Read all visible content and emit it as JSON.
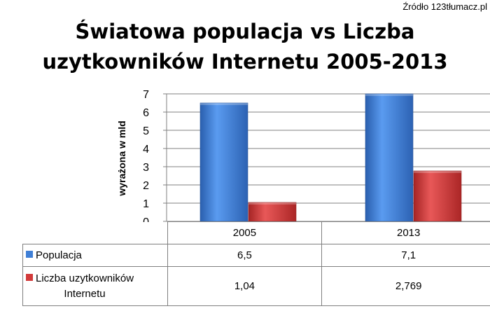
{
  "source": "Źródło 123tłumacz.pl",
  "chart_data": {
    "type": "bar",
    "title_lines": [
      "Światowa populacja vs Liczba",
      "uzytkowników Internetu 2005-2013"
    ],
    "ylabel": "wyrażona w mld",
    "xlabel": "",
    "categories": [
      "2005",
      "2013"
    ],
    "ylim": [
      0,
      7
    ],
    "yticks": [
      "0",
      "1",
      "2",
      "3",
      "4",
      "5",
      "6",
      "7"
    ],
    "grid": true,
    "series": [
      {
        "name": "Populacja",
        "values": [
          6.5,
          7.1
        ],
        "labels": [
          "6,5",
          "7,1"
        ],
        "color": "#3f7fd6"
      },
      {
        "name": "Liczba uzytkowników Internetu",
        "name_lines": [
          "Liczba uzytkowników",
          "Internetu"
        ],
        "values": [
          1.04,
          2.769
        ],
        "labels": [
          "1,04",
          "2,769"
        ],
        "color": "#d23a3a"
      }
    ],
    "legend": "data-table"
  }
}
